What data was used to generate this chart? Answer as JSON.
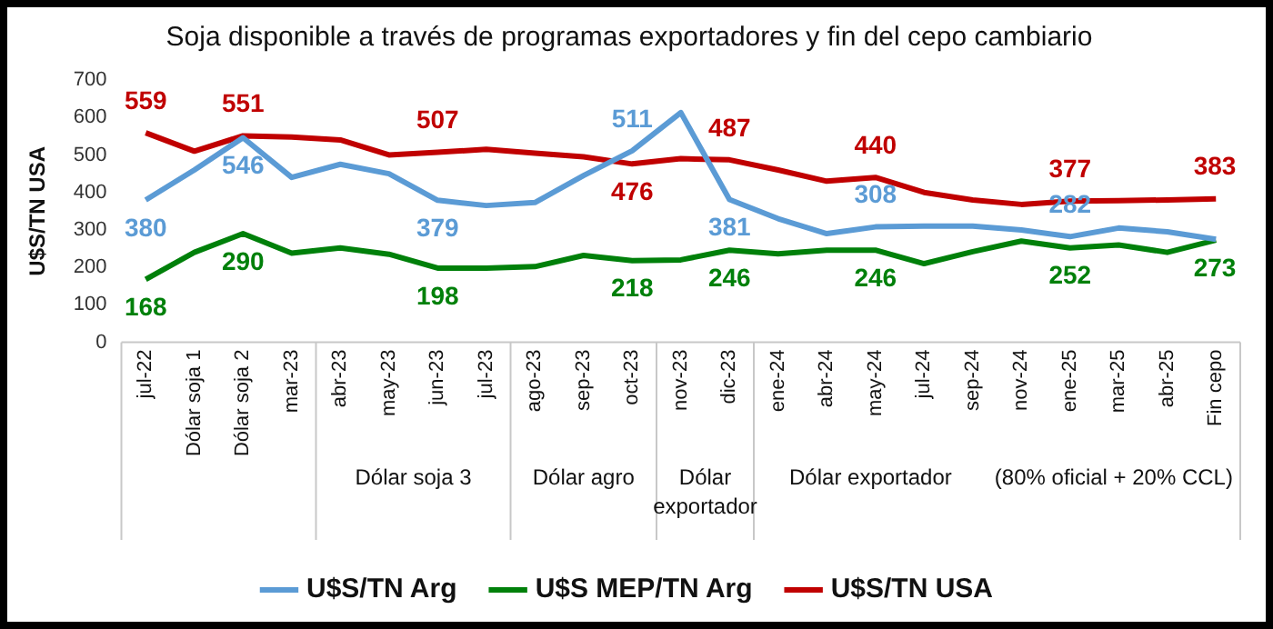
{
  "chart_data": {
    "type": "line",
    "title": "Soja disponible a través de programas exportadores y fin del cepo cambiario",
    "ylabel": "U$S/TN USA",
    "categories": [
      "jul-22",
      "Dólar soja 1",
      "Dólar soja 2",
      "mar-23",
      "abr-23",
      "may-23",
      "jun-23",
      "jul-23",
      "ago-23",
      "sep-23",
      "oct-23",
      "nov-23",
      "dic-23",
      "ene-24",
      "abr-24",
      "may-24",
      "jul-24",
      "sep-24",
      "nov-24",
      "ene-25",
      "mar-25",
      "abr-25",
      "Fin cepo"
    ],
    "series": [
      {
        "name": "U$S/TN Arg",
        "color": "#5b9bd5",
        "values": [
          380,
          460,
          546,
          440,
          475,
          450,
          379,
          365,
          373,
          445,
          511,
          613,
          381,
          330,
          290,
          308,
          310,
          310,
          300,
          282,
          305,
          295,
          275
        ],
        "value_labels": [
          "380",
          null,
          "546",
          null,
          null,
          null,
          "379",
          null,
          null,
          null,
          "511",
          null,
          "381",
          null,
          null,
          "308",
          null,
          null,
          null,
          "282",
          null,
          null,
          null
        ]
      },
      {
        "name": "U$S MEP/TN Arg",
        "color": "#00800a",
        "values": [
          168,
          240,
          290,
          238,
          252,
          235,
          198,
          198,
          202,
          232,
          218,
          220,
          246,
          236,
          246,
          246,
          210,
          242,
          270,
          252,
          260,
          240,
          273
        ],
        "value_labels": [
          "168",
          null,
          "290",
          null,
          null,
          null,
          "198",
          null,
          null,
          null,
          "218",
          null,
          "246",
          null,
          null,
          "246",
          null,
          null,
          null,
          "252",
          null,
          null,
          "273"
        ]
      },
      {
        "name": "U$S/TN USA",
        "color": "#c00000",
        "values": [
          559,
          510,
          551,
          548,
          540,
          500,
          507,
          515,
          505,
          495,
          476,
          490,
          487,
          460,
          430,
          440,
          400,
          380,
          368,
          377,
          378,
          380,
          383
        ],
        "value_labels": [
          "559",
          null,
          "551",
          null,
          null,
          null,
          "507",
          null,
          null,
          null,
          "476",
          null,
          "487",
          null,
          null,
          "440",
          null,
          null,
          null,
          "377",
          null,
          null,
          "383"
        ]
      }
    ],
    "ylim": [
      0,
      700
    ],
    "yticks": [
      0,
      100,
      200,
      300,
      400,
      500,
      600,
      700
    ],
    "grid": false,
    "legend": "bottom",
    "marker": "none",
    "line_style": "solid",
    "annotations": [
      "Dólar soja 3",
      "Dólar agro",
      "Dólar exportador",
      "Dólar exportador",
      "(80% oficial + 20% CCL)"
    ]
  }
}
